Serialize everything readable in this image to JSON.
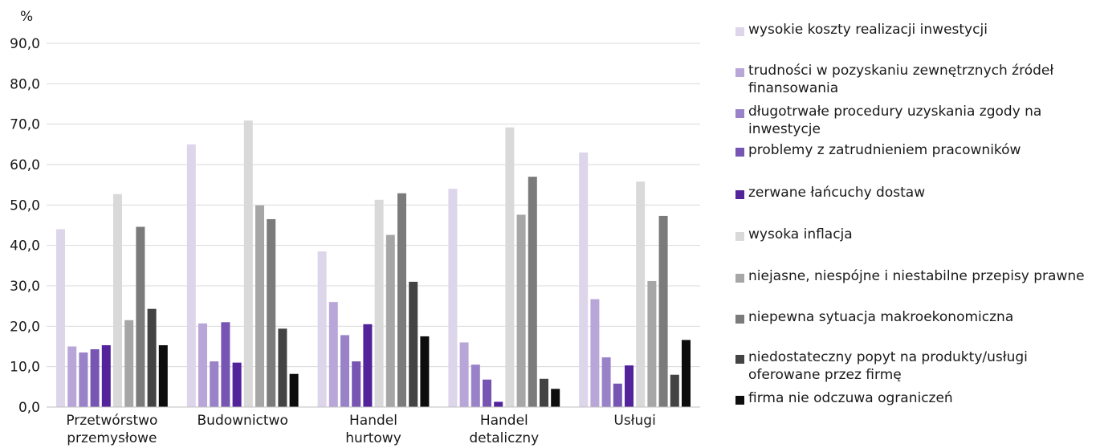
{
  "chart_data": {
    "type": "bar",
    "ylabel": "%",
    "ylim": [
      0,
      90
    ],
    "yticks": [
      "0,0",
      "10,0",
      "20,0",
      "30,0",
      "40,0",
      "50,0",
      "60,0",
      "70,0",
      "80,0",
      "90,0"
    ],
    "grid": true,
    "legend_position": "right",
    "categories": [
      [
        "Przetwórstwo",
        "przemysłowe"
      ],
      [
        "Budownictwo"
      ],
      [
        "Handel",
        "hurtowy"
      ],
      [
        "Handel",
        "detaliczny"
      ],
      [
        "Usługi"
      ]
    ],
    "series": [
      {
        "name": "wysokie koszty realizacji inwestycji",
        "color": "#ddd5ea",
        "values": [
          44.0,
          65.0,
          38.5,
          54.0,
          63.0
        ]
      },
      {
        "name": "trudności w pozyskaniu zewnętrznych źródeł finansowania",
        "color": "#b9a6d8",
        "values": [
          15.0,
          20.7,
          26.0,
          16.0,
          26.7
        ]
      },
      {
        "name": "długotrwałe procedury uzyskania zgody na inwestycje",
        "color": "#9a82c8",
        "values": [
          13.5,
          11.3,
          17.8,
          10.5,
          12.3
        ]
      },
      {
        "name": "problemy z zatrudnieniem pracowników",
        "color": "#7655b3",
        "values": [
          14.3,
          21.0,
          11.3,
          6.8,
          5.8
        ]
      },
      {
        "name": "zerwane łańcuchy dostaw",
        "color": "#52239a",
        "values": [
          15.3,
          11.0,
          20.5,
          1.3,
          10.3
        ]
      },
      {
        "name": "wysoka inflacja",
        "color": "#d9d9d9",
        "values": [
          52.7,
          70.9,
          51.3,
          69.2,
          55.8
        ]
      },
      {
        "name": "niejasne, niespójne i niestabilne przepisy prawne",
        "color": "#a6a6a6",
        "values": [
          21.5,
          49.9,
          42.6,
          47.6,
          31.2
        ]
      },
      {
        "name": "niepewna sytuacja makroekonomiczna",
        "color": "#7b7b7b",
        "values": [
          44.6,
          46.5,
          52.9,
          57.0,
          47.3
        ]
      },
      {
        "name": "niedostateczny popyt na produkty/usługi oferowane przez firmę",
        "color": "#434343",
        "values": [
          24.3,
          19.4,
          31.0,
          7.0,
          8.0
        ]
      },
      {
        "name": "firma nie odczuwa ograniczeń",
        "color": "#0d0d0d",
        "values": [
          15.3,
          8.2,
          17.5,
          4.5,
          16.6
        ]
      }
    ]
  }
}
